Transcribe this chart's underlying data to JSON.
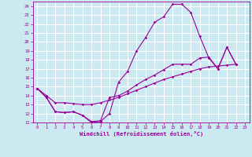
{
  "xlabel": "Windchill (Refroidissement éolien,°C)",
  "background_color": "#cce8f0",
  "line_color": "#990099",
  "grid_color": "#ffffff",
  "xlim": [
    -0.5,
    23.5
  ],
  "ylim": [
    11,
    24.5
  ],
  "yticks": [
    11,
    12,
    13,
    14,
    15,
    16,
    17,
    18,
    19,
    20,
    21,
    22,
    23,
    24
  ],
  "xticks": [
    0,
    1,
    2,
    3,
    4,
    5,
    6,
    7,
    8,
    9,
    10,
    11,
    12,
    13,
    14,
    15,
    16,
    17,
    18,
    19,
    20,
    21,
    22,
    23
  ],
  "series": [
    [
      14.8,
      13.8,
      12.2,
      12.1,
      12.2,
      11.8,
      11.0,
      11.1,
      12.0,
      15.5,
      16.7,
      19.0,
      20.5,
      22.2,
      22.8,
      24.2,
      24.2,
      23.3,
      20.6,
      18.2,
      17.0,
      19.4,
      17.5
    ],
    [
      14.8,
      14.0,
      13.2,
      13.2,
      13.1,
      13.0,
      13.0,
      13.2,
      13.5,
      13.8,
      14.2,
      14.6,
      15.0,
      15.4,
      15.8,
      16.1,
      16.4,
      16.7,
      17.0,
      17.2,
      17.3,
      17.4,
      17.5
    ],
    [
      14.8,
      13.8,
      12.2,
      12.1,
      12.2,
      11.8,
      11.1,
      11.2,
      13.8,
      14.0,
      14.5,
      15.2,
      15.8,
      16.3,
      16.9,
      17.5,
      17.5,
      17.5,
      18.2,
      18.3,
      17.0,
      19.4,
      17.5
    ]
  ],
  "series_x": [
    [
      0,
      1,
      2,
      3,
      4,
      5,
      6,
      7,
      8,
      9,
      10,
      11,
      12,
      13,
      14,
      15,
      16,
      17,
      18,
      19,
      20,
      21,
      22
    ],
    [
      0,
      1,
      2,
      3,
      4,
      5,
      6,
      7,
      8,
      9,
      10,
      11,
      12,
      13,
      14,
      15,
      16,
      17,
      18,
      19,
      20,
      21,
      22
    ],
    [
      0,
      1,
      2,
      3,
      4,
      5,
      6,
      7,
      8,
      9,
      10,
      11,
      12,
      13,
      14,
      15,
      16,
      17,
      18,
      19,
      20,
      21,
      22
    ]
  ]
}
